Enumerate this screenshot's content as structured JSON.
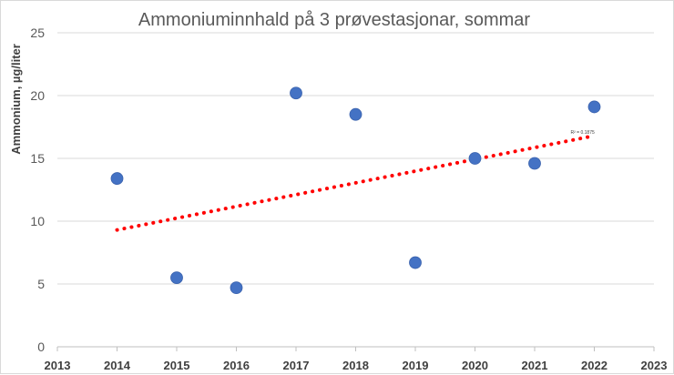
{
  "chart_data": {
    "type": "scatter",
    "title": "Ammoniuminnhald på 3 prøvestasjonar, sommar",
    "xlabel": "",
    "ylabel": "Ammonium, µg/liter",
    "xlim": [
      2013,
      2023
    ],
    "ylim": [
      0,
      25
    ],
    "x_ticks": [
      "2013",
      "2014",
      "2015",
      "2016",
      "2017",
      "2018",
      "2019",
      "2020",
      "2021",
      "2022",
      "2023"
    ],
    "y_ticks": [
      "0",
      "5",
      "10",
      "15",
      "20",
      "25"
    ],
    "grid": "horizontal",
    "series": [
      {
        "x": [
          2014,
          2015,
          2016,
          2017,
          2018,
          2019,
          2020,
          2021,
          2022
        ],
        "y": [
          13.4,
          5.5,
          4.7,
          20.2,
          18.5,
          6.7,
          15.0,
          14.6,
          19.1
        ]
      }
    ],
    "trendline": {
      "type": "linear",
      "x_start": 2014,
      "y_start": 9.3,
      "x_end": 2022,
      "y_end": 16.8,
      "label": "R² = 0.1875"
    },
    "colors": {
      "points": "#4472c4",
      "trendline": "#ff0000",
      "grid": "#d9d9d9"
    }
  }
}
